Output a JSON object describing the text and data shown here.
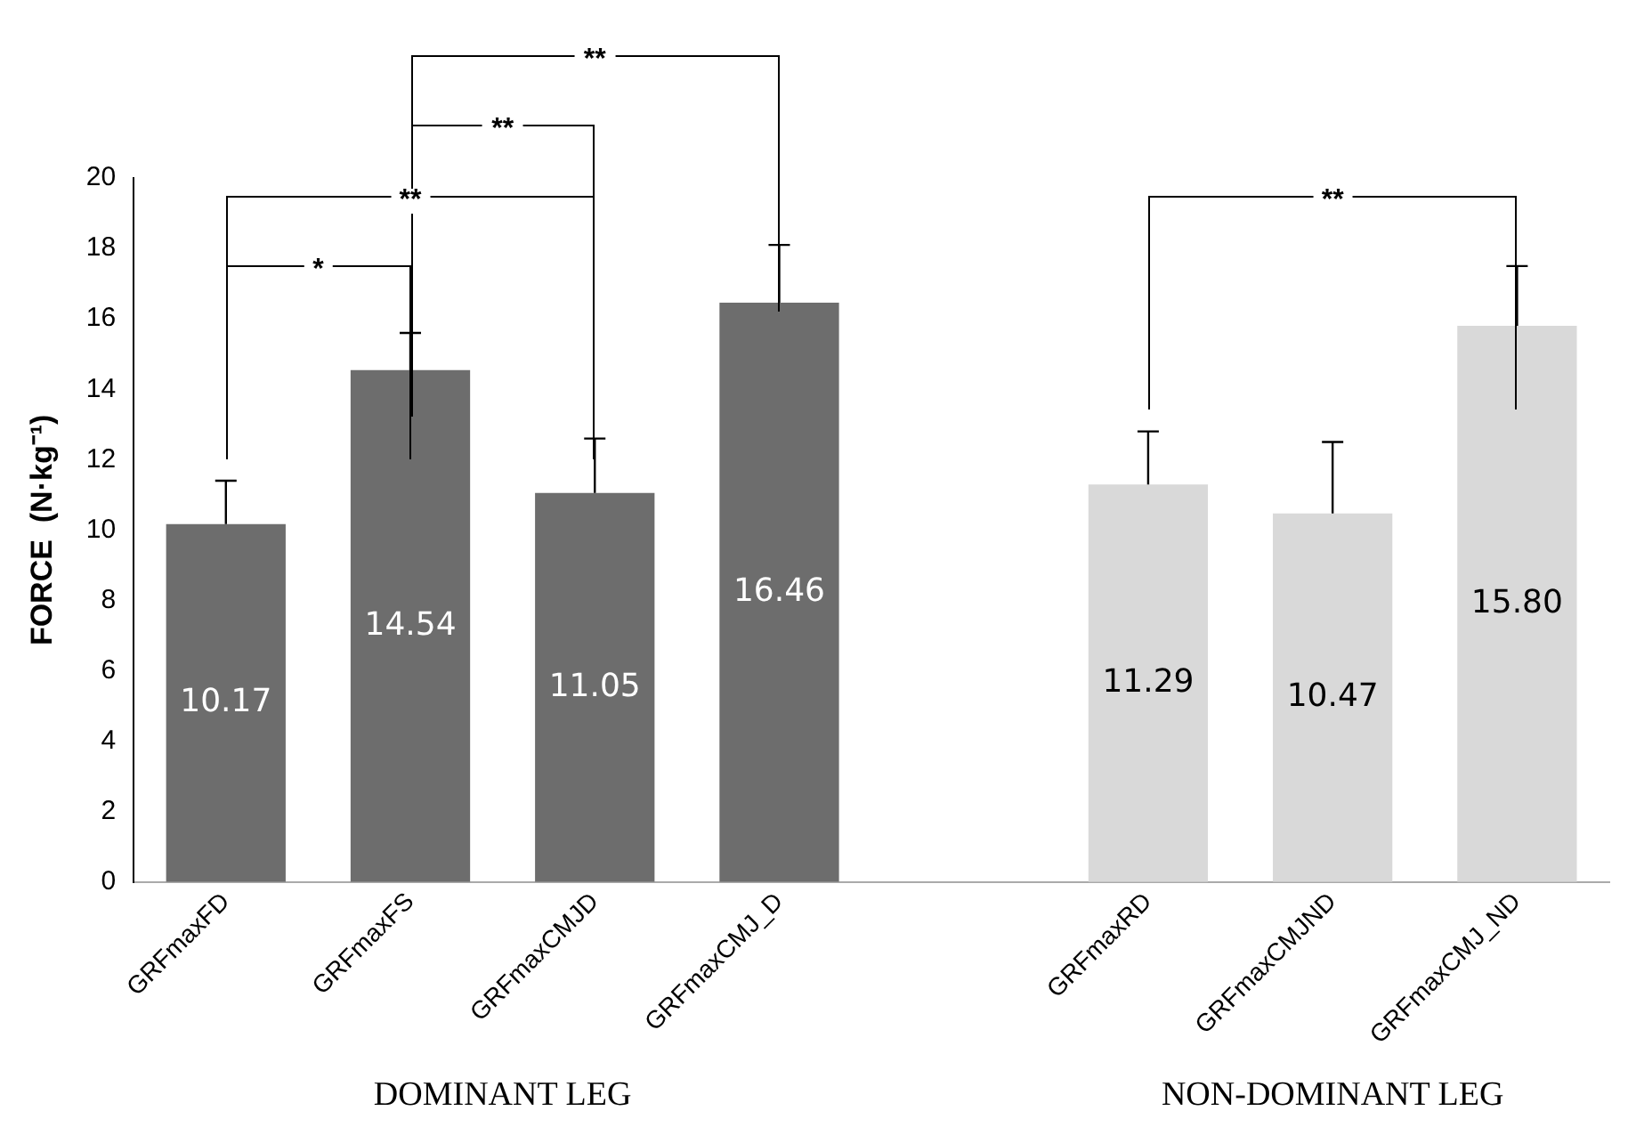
{
  "chart_data": {
    "type": "bar",
    "ylabel": "FORCE  (N·kg⁻¹)",
    "categories": [
      "GRFmaxFD",
      "GRFmaxFS",
      "GRFmaxCMJD",
      "GRFmaxCMJ_D",
      null,
      "GRFmaxRD",
      "GRFmaxCMJND",
      "GRFmaxCMJ_ND"
    ],
    "values": [
      10.17,
      14.54,
      11.05,
      16.46,
      null,
      11.29,
      10.47,
      15.8
    ],
    "colors": [
      "#6d6d6d",
      "#6d6d6d",
      "#6d6d6d",
      "#6d6d6d",
      "#6d6d6d",
      "#d9d9d9",
      "#d9d9d9",
      "#d9d9d9"
    ],
    "errors": [
      [
        10.17,
        11.4
      ],
      [
        14.54,
        15.6
      ],
      [
        11.05,
        12.6
      ],
      [
        16.46,
        18.1
      ],
      null,
      [
        11.29,
        12.8
      ],
      [
        10.47,
        12.5
      ],
      [
        15.8,
        17.5
      ]
    ],
    "value_labels": [
      "10.17",
      "14.54",
      "11.05",
      "16.46",
      null,
      "11.29",
      "10.47",
      "15.80"
    ],
    "ylim": [
      0,
      20
    ],
    "yticks": [
      0,
      2,
      4,
      6,
      8,
      10,
      12,
      14,
      16,
      18,
      20
    ],
    "grid": false,
    "legend": false,
    "annotations": [
      "*",
      "**",
      "**",
      "**",
      "**",
      "DOMINANT LEG",
      "NON-DOMINANT LEG"
    ]
  }
}
